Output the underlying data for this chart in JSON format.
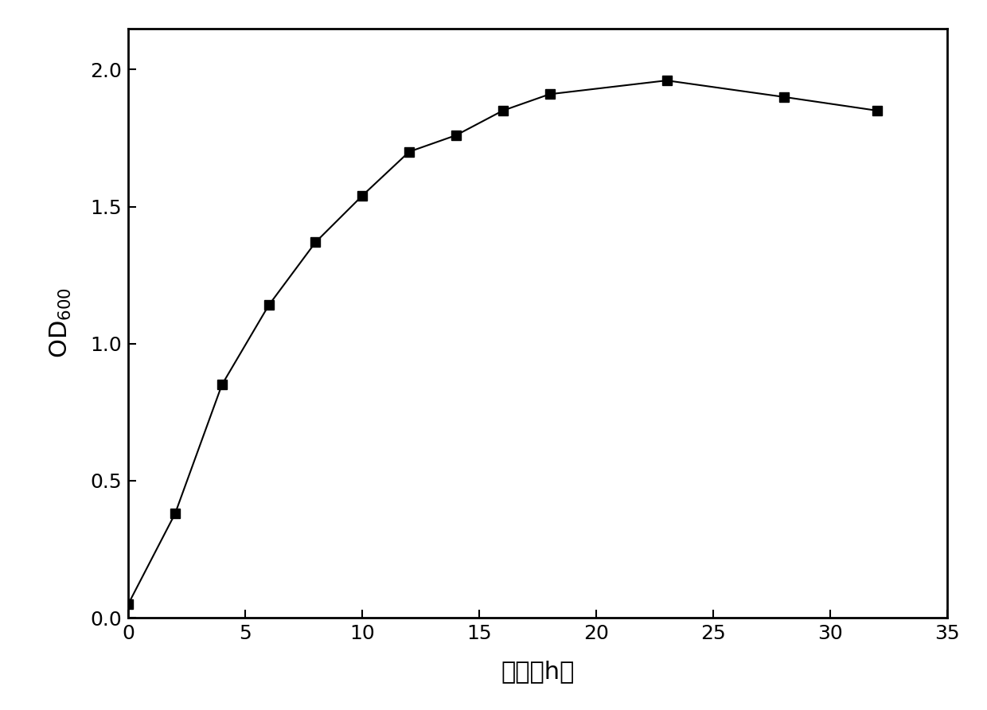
{
  "x": [
    0,
    2,
    4,
    6,
    8,
    10,
    12,
    14,
    16,
    18,
    23,
    28,
    32
  ],
  "y": [
    0.05,
    0.38,
    0.85,
    1.14,
    1.37,
    1.54,
    1.7,
    1.76,
    1.85,
    1.91,
    1.96,
    1.9,
    1.85
  ],
  "xlabel": "时间（h）",
  "ylabel": "OD$_{600}$",
  "xlim": [
    0,
    35
  ],
  "ylim": [
    0.0,
    2.15
  ],
  "xticks": [
    0,
    5,
    10,
    15,
    20,
    25,
    30,
    35
  ],
  "yticks": [
    0.0,
    0.5,
    1.0,
    1.5,
    2.0
  ],
  "line_color": "#000000",
  "marker": "s",
  "marker_size": 8,
  "marker_facecolor": "#000000",
  "linewidth": 1.5,
  "background_color": "#ffffff",
  "label_fontsize": 22,
  "tick_fontsize": 18
}
